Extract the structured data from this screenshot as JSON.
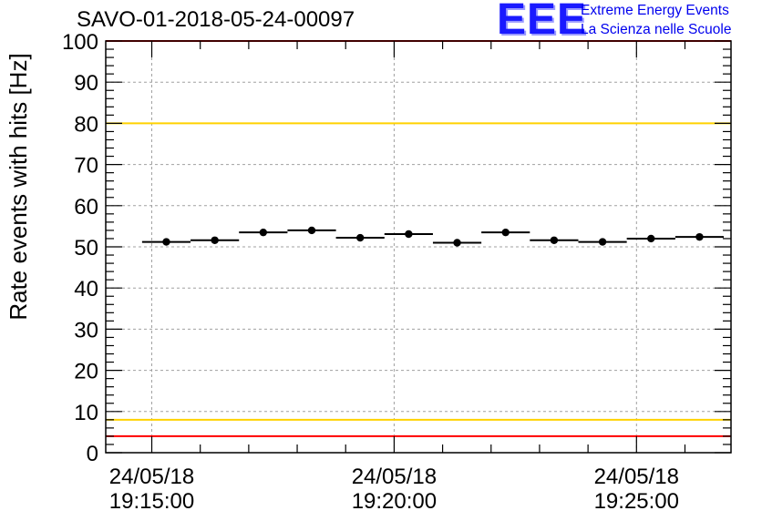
{
  "header": {
    "title": "SAVO-01-2018-05-24-00097",
    "logo_mark": "EEE",
    "logo_line1": "Extreme Energy Events",
    "logo_line2": "La Scienza nelle Scuole"
  },
  "colors": {
    "red": "#ff0000",
    "yellow": "#ffd200",
    "grid": "#a0a0a0",
    "marker": "#000000"
  },
  "chart_data": {
    "type": "scatter",
    "title": "SAVO-01-2018-05-24-00097",
    "xlabel": "",
    "ylabel": "Rate events with hits [Hz]",
    "ylim": [
      0,
      100
    ],
    "yticks": [
      0,
      10,
      20,
      30,
      40,
      50,
      60,
      70,
      80,
      90,
      100
    ],
    "x_unit": "minutes after 19:15:00",
    "xlim": [
      -0.95,
      11.95
    ],
    "xticks": [
      {
        "x": 0,
        "line1": "24/05/18",
        "line2": "19:15:00"
      },
      {
        "x": 5,
        "line1": "24/05/18",
        "line2": "19:20:00"
      },
      {
        "x": 10,
        "line1": "24/05/18",
        "line2": "19:25:00"
      }
    ],
    "bin_width": 1,
    "points": [
      {
        "x": 0.3,
        "y": 51.2,
        "yerr": 0.7
      },
      {
        "x": 1.3,
        "y": 51.6,
        "yerr": 0.7
      },
      {
        "x": 2.3,
        "y": 53.5,
        "yerr": 0.7
      },
      {
        "x": 3.3,
        "y": 54.0,
        "yerr": 0.7
      },
      {
        "x": 4.3,
        "y": 52.2,
        "yerr": 0.7
      },
      {
        "x": 5.3,
        "y": 53.1,
        "yerr": 0.7
      },
      {
        "x": 6.3,
        "y": 51.0,
        "yerr": 0.7
      },
      {
        "x": 7.3,
        "y": 53.5,
        "yerr": 0.7
      },
      {
        "x": 8.3,
        "y": 51.6,
        "yerr": 0.7
      },
      {
        "x": 9.3,
        "y": 51.2,
        "yerr": 0.7
      },
      {
        "x": 10.3,
        "y": 52.0,
        "yerr": 0.7
      },
      {
        "x": 11.3,
        "y": 52.4,
        "yerr": 0.7
      }
    ],
    "reference_lines": [
      {
        "y": 100,
        "color": "red"
      },
      {
        "y": 80,
        "color": "yellow"
      },
      {
        "y": 8,
        "color": "yellow"
      },
      {
        "y": 4,
        "color": "red"
      }
    ]
  }
}
